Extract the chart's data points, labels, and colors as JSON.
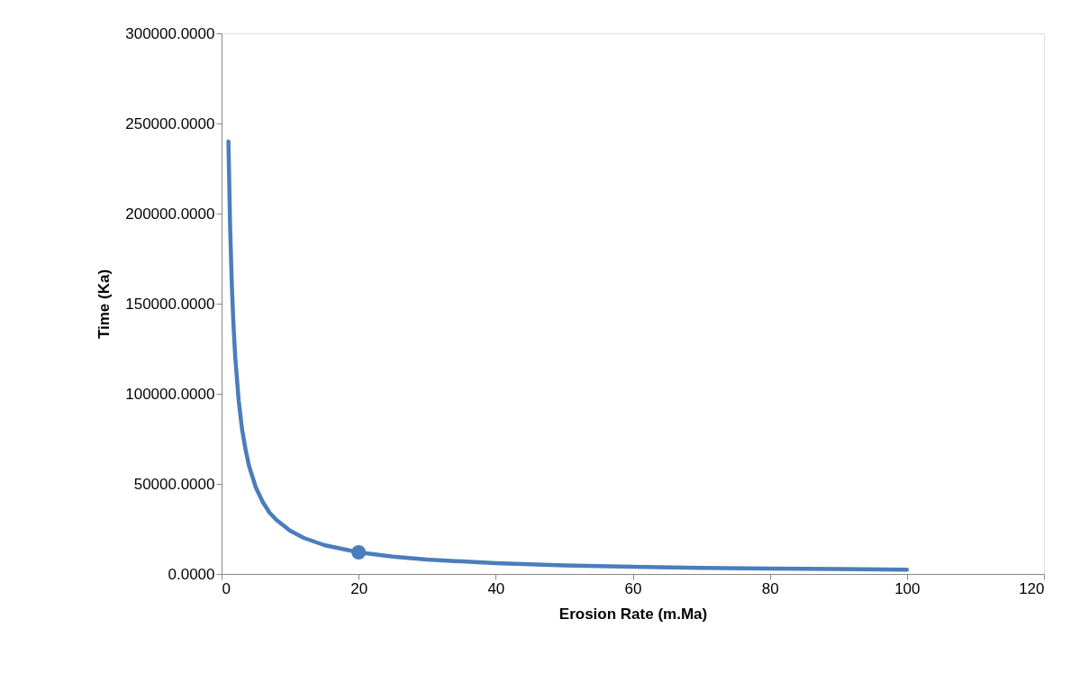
{
  "chart_data": {
    "type": "line",
    "xlabel": "Erosion Rate (m.Ma)",
    "ylabel": "Time (Ka)",
    "xlim": [
      0,
      120
    ],
    "xticks": [
      0,
      20,
      40,
      60,
      80,
      100,
      120
    ],
    "ylim": [
      0,
      300000
    ],
    "yticks": [
      {
        "value": 0,
        "label": "0.0000"
      },
      {
        "value": 50000,
        "label": "50000.0000"
      },
      {
        "value": 100000,
        "label": "100000.0000"
      },
      {
        "value": 150000,
        "label": "150000.0000"
      },
      {
        "value": 200000,
        "label": "200000.0000"
      },
      {
        "value": 250000,
        "label": "250000.0000"
      },
      {
        "value": 300000,
        "label": "300000.0000"
      }
    ],
    "grid": false,
    "line_style": "solid",
    "series": [
      {
        "marker": "none",
        "color": "#4a7ebb",
        "x": [
          1,
          1.25,
          1.5,
          1.75,
          2,
          2.5,
          3,
          3.5,
          4,
          5,
          6,
          7,
          8,
          10,
          12,
          15,
          20,
          25,
          30,
          40,
          50,
          60,
          70,
          80,
          90,
          100
        ],
        "values": [
          240000,
          192000,
          160000,
          137000,
          120000,
          96000,
          80000,
          69000,
          60000,
          48000,
          40000,
          34000,
          30000,
          24000,
          20000,
          16000,
          12000,
          9600,
          8000,
          6000,
          4800,
          4000,
          3400,
          3000,
          2700,
          2400
        ]
      },
      {
        "type": "scatter",
        "marker": "circle",
        "color": "#4a7ebb",
        "x": [
          20
        ],
        "values": [
          12000
        ]
      }
    ]
  }
}
